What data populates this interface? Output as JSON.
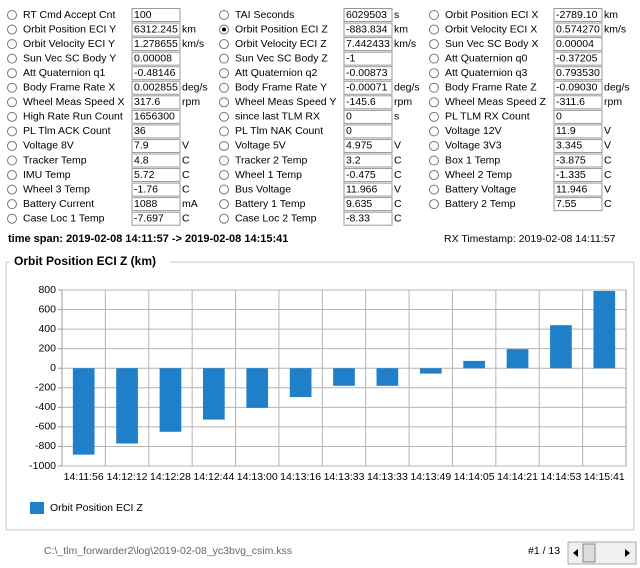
{
  "fields": [
    [
      {
        "label": "RT Cmd Accept Cnt",
        "value": "100"
      },
      {
        "label": "Orbit Position ECI Y",
        "value": "6312.245",
        "unit": "km"
      },
      {
        "label": "Orbit Velocity ECI Y",
        "value": "1.278655",
        "unit": "km/s"
      },
      {
        "label": "Sun Vec SC Body Y",
        "value": "0.00008"
      },
      {
        "label": "Att Quaternion q1",
        "value": "-0.48146"
      },
      {
        "label": "Body Frame Rate X",
        "value": "0.002855",
        "unit": "deg/s"
      },
      {
        "label": "Wheel Meas Speed X",
        "value": "317.6",
        "unit": "rpm"
      },
      {
        "label": "High Rate Run Count",
        "value": "1656300"
      },
      {
        "label": "PL Tlm ACK Count",
        "value": "36"
      },
      {
        "label": "Voltage 8V",
        "value": "7.9",
        "unit": "V"
      },
      {
        "label": "Tracker Temp",
        "value": "4.8",
        "unit": "C"
      },
      {
        "label": "IMU Temp",
        "value": "5.72",
        "unit": "C"
      },
      {
        "label": "Wheel 3 Temp",
        "value": "-1.76",
        "unit": "C"
      },
      {
        "label": "Battery Current",
        "value": "1088",
        "unit": "mA"
      },
      {
        "label": "Case Loc 1 Temp",
        "value": "-7.697",
        "unit": "C"
      }
    ],
    [
      {
        "label": "TAI Seconds",
        "value": "6029503",
        "unit": "s"
      },
      {
        "label": "Orbit Position ECI Z",
        "value": "-883.834",
        "unit": "km",
        "selected": true
      },
      {
        "label": "Orbit Velocity ECI Z",
        "value": "7.442433",
        "unit": "km/s"
      },
      {
        "label": "Sun Vec SC Body Z",
        "value": "-1"
      },
      {
        "label": "Att Quaternion q2",
        "value": "-0.00873"
      },
      {
        "label": "Body Frame Rate Y",
        "value": "-0.00071",
        "unit": "deg/s"
      },
      {
        "label": "Wheel Meas Speed Y",
        "value": "-145.6",
        "unit": "rpm"
      },
      {
        "label": "since last TLM RX",
        "value": "0",
        "unit": "s"
      },
      {
        "label": "PL Tlm NAK Count",
        "value": "0"
      },
      {
        "label": "Voltage 5V",
        "value": "4.975",
        "unit": "V"
      },
      {
        "label": "Tracker 2 Temp",
        "value": "3.2",
        "unit": "C"
      },
      {
        "label": "Wheel 1 Temp",
        "value": "-0.475",
        "unit": "C"
      },
      {
        "label": "Bus Voltage",
        "value": "11.966",
        "unit": "V"
      },
      {
        "label": "Battery 1 Temp",
        "value": "9.635",
        "unit": "C"
      },
      {
        "label": "Case Loc 2 Temp",
        "value": "-8.33",
        "unit": "C"
      }
    ],
    [
      {
        "label": "Orbit Position ECI X",
        "value": "-2789.10",
        "unit": "km"
      },
      {
        "label": "Orbit Velocity ECI X",
        "value": "0.574270",
        "unit": "km/s"
      },
      {
        "label": "Sun Vec SC Body X",
        "value": "0.00004"
      },
      {
        "label": "Att Quaternion q0",
        "value": "-0.37205"
      },
      {
        "label": "Att Quaternion q3",
        "value": "0.793530"
      },
      {
        "label": "Body Frame Rate Z",
        "value": "-0.09030",
        "unit": "deg/s"
      },
      {
        "label": "Wheel Meas Speed Z",
        "value": "-311.6",
        "unit": "rpm"
      },
      {
        "label": "PL TLM RX Count",
        "value": "0"
      },
      {
        "label": "Voltage 12V",
        "value": "11.9",
        "unit": "V"
      },
      {
        "label": "Voltage 3V3",
        "value": "3.345",
        "unit": "V"
      },
      {
        "label": "Box 1 Temp",
        "value": "-3.875",
        "unit": "C"
      },
      {
        "label": "Wheel 2 Temp",
        "value": "-1.335",
        "unit": "C"
      },
      {
        "label": "Battery Voltage",
        "value": "11.946",
        "unit": "V"
      },
      {
        "label": "Battery 2 Temp",
        "value": "7.55",
        "unit": "C"
      }
    ]
  ],
  "time_span": "time span: 2019-02-08 14:11:57 -> 2019-02-08 14:15:41",
  "rx_timestamp": "RX Timestamp: 2019-02-08 14:11:57",
  "chart_data": {
    "type": "bar",
    "title": "Orbit Position ECI Z (km)",
    "categories": [
      "14:11:56",
      "14:12:12",
      "14:12:28",
      "14:12:44",
      "14:13:00",
      "14:13:16",
      "14:13:33",
      "14:13:33",
      "14:13:49",
      "14:14:05",
      "14:14:21",
      "14:14:53",
      "14:15:41"
    ],
    "series": [
      {
        "name": "Orbit Position ECI Z",
        "color": "#1f7fc8",
        "values": [
          -884,
          -770,
          -650,
          -525,
          -405,
          -295,
          -180,
          -180,
          -55,
          75,
          195,
          440,
          790
        ]
      }
    ],
    "ylim": [
      -1000,
      800
    ],
    "yticks": [
      -1000,
      -800,
      -600,
      -400,
      -200,
      0,
      200,
      400,
      600,
      800
    ],
    "grid": true,
    "legend": "bottom-left"
  },
  "footer": {
    "file": "C:\\_tlm_forwarder2\\log\\2019-02-08_yc3bvg_csim.kss",
    "record": "#1 / 13"
  }
}
